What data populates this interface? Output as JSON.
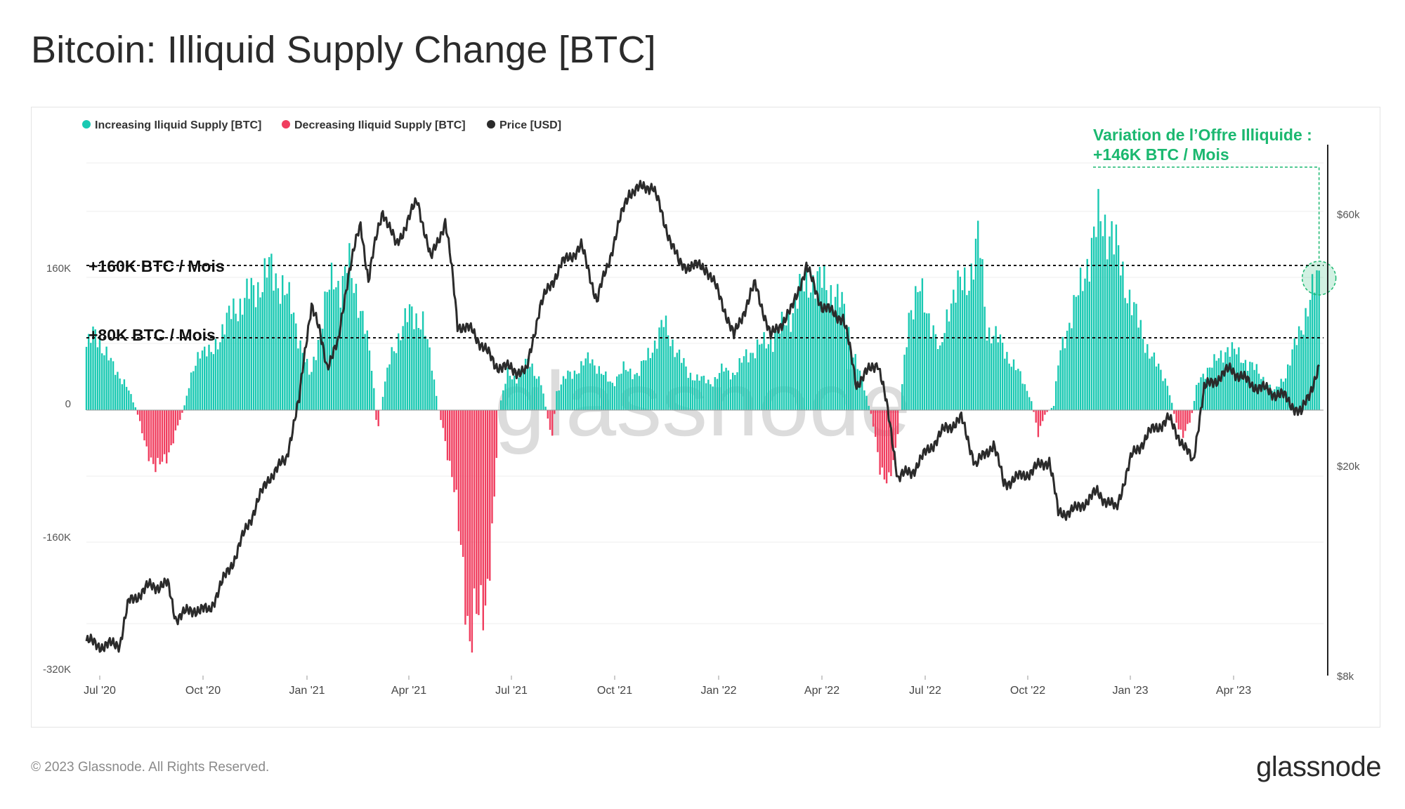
{
  "title": "Bitcoin: Illiquid Supply Change [BTC]",
  "footer": {
    "copyright": "© 2023 Glassnode. All Rights Reserved.",
    "logo": "glassnode"
  },
  "watermark": "glassnode",
  "colors": {
    "increase": "#19c9b2",
    "decrease": "#f03e5f",
    "price": "#2b2b2b",
    "annotation": "#1bb870"
  },
  "legend": [
    {
      "label": "Increasing Iliquid Supply [BTC]",
      "color": "#19c9b2"
    },
    {
      "label": "Decreasing Iliquid Supply [BTC]",
      "color": "#f03e5f"
    },
    {
      "label": "Price [USD]",
      "color": "#2b2b2b"
    }
  ],
  "annotations": {
    "line_160": "+160K BTC / Mois",
    "line_80": "+80K BTC / Mois",
    "current_line1": "Variation de l’Offre Illiquide :",
    "current_line2": "+146K BTC / Mois"
  },
  "chart_data": {
    "type": "bar",
    "title": "Bitcoin: Illiquid Supply Change [BTC]",
    "x_range": [
      "2020-06-20",
      "2023-07-05"
    ],
    "x_ticks": [
      "Jul '20",
      "Oct '20",
      "Jan '21",
      "Apr '21",
      "Jul '21",
      "Oct '21",
      "Jan '22",
      "Apr '22",
      "Jul '22",
      "Oct '22",
      "Jan '23",
      "Apr '23"
    ],
    "y_left": {
      "label": "Illiquid Supply Change [BTC]",
      "ticks": [
        "160K",
        "0",
        "-160K",
        "-320K"
      ],
      "tick_values": [
        160000,
        0,
        -160000,
        -320000
      ],
      "range": [
        -320000,
        320000
      ]
    },
    "y_right": {
      "label": "Price [USD]",
      "scale": "log",
      "ticks": [
        "$60k",
        "$20k",
        "$8k"
      ],
      "tick_values": [
        60000,
        20000,
        8000
      ],
      "range": [
        8000,
        90000
      ]
    },
    "reference_lines": [
      {
        "value": 160000,
        "label": "+160K BTC / Mois"
      },
      {
        "value": 80000,
        "label": "+80K BTC / Mois"
      }
    ],
    "highlight": {
      "date": "2023-07-01",
      "value": 146000,
      "label": "+146K BTC / Mois"
    },
    "series": [
      {
        "name": "Illiquid Supply Change [BTC]",
        "points": [
          [
            "2020-06-20",
            70000
          ],
          [
            "2020-06-28",
            85000
          ],
          [
            "2020-07-07",
            65000
          ],
          [
            "2020-07-15",
            45000
          ],
          [
            "2020-07-25",
            30000
          ],
          [
            "2020-08-04",
            0
          ],
          [
            "2020-08-12",
            -40000
          ],
          [
            "2020-08-22",
            -65000
          ],
          [
            "2020-08-30",
            -55000
          ],
          [
            "2020-09-08",
            -25000
          ],
          [
            "2020-09-15",
            0
          ],
          [
            "2020-09-22",
            35000
          ],
          [
            "2020-09-30",
            70000
          ],
          [
            "2020-10-10",
            60000
          ],
          [
            "2020-10-20",
            90000
          ],
          [
            "2020-10-30",
            110000
          ],
          [
            "2020-11-10",
            125000
          ],
          [
            "2020-11-20",
            135000
          ],
          [
            "2020-12-01",
            155000
          ],
          [
            "2020-12-12",
            140000
          ],
          [
            "2020-12-22",
            110000
          ],
          [
            "2021-01-01",
            60000
          ],
          [
            "2021-01-07",
            35000
          ],
          [
            "2021-01-14",
            80000
          ],
          [
            "2021-01-21",
            120000
          ],
          [
            "2021-01-28",
            150000
          ],
          [
            "2021-02-04",
            135000
          ],
          [
            "2021-02-10",
            160000
          ],
          [
            "2021-02-18",
            130000
          ],
          [
            "2021-02-25",
            90000
          ],
          [
            "2021-03-04",
            40000
          ],
          [
            "2021-03-08",
            -30000
          ],
          [
            "2021-03-12",
            10000
          ],
          [
            "2021-03-20",
            60000
          ],
          [
            "2021-03-30",
            90000
          ],
          [
            "2021-04-08",
            110000
          ],
          [
            "2021-04-18",
            95000
          ],
          [
            "2021-04-26",
            50000
          ],
          [
            "2021-05-02",
            0
          ],
          [
            "2021-05-06",
            -20000
          ],
          [
            "2021-05-15",
            -80000
          ],
          [
            "2021-05-24",
            -170000
          ],
          [
            "2021-05-30",
            -255000
          ],
          [
            "2021-06-06",
            -230000
          ],
          [
            "2021-06-14",
            -200000
          ],
          [
            "2021-06-20",
            -130000
          ],
          [
            "2021-06-25",
            0
          ],
          [
            "2021-07-03",
            40000
          ],
          [
            "2021-07-12",
            35000
          ],
          [
            "2021-07-22",
            55000
          ],
          [
            "2021-08-02",
            30000
          ],
          [
            "2021-08-08",
            -10000
          ],
          [
            "2021-08-12",
            -30000
          ],
          [
            "2021-08-16",
            20000
          ],
          [
            "2021-08-26",
            40000
          ],
          [
            "2021-09-06",
            45000
          ],
          [
            "2021-09-15",
            60000
          ],
          [
            "2021-09-25",
            40000
          ],
          [
            "2021-10-05",
            30000
          ],
          [
            "2021-10-15",
            45000
          ],
          [
            "2021-10-28",
            40000
          ],
          [
            "2021-11-10",
            70000
          ],
          [
            "2021-11-20",
            95000
          ],
          [
            "2021-11-30",
            70000
          ],
          [
            "2021-12-12",
            40000
          ],
          [
            "2021-12-22",
            35000
          ],
          [
            "2022-01-02",
            30000
          ],
          [
            "2022-01-12",
            45000
          ],
          [
            "2022-01-22",
            40000
          ],
          [
            "2022-02-02",
            60000
          ],
          [
            "2022-02-12",
            70000
          ],
          [
            "2022-02-22",
            75000
          ],
          [
            "2022-03-02",
            85000
          ],
          [
            "2022-03-12",
            100000
          ],
          [
            "2022-03-22",
            130000
          ],
          [
            "2022-04-01",
            145000
          ],
          [
            "2022-04-12",
            140000
          ],
          [
            "2022-04-22",
            130000
          ],
          [
            "2022-05-01",
            110000
          ],
          [
            "2022-05-10",
            60000
          ],
          [
            "2022-05-20",
            20000
          ],
          [
            "2022-05-26",
            -10000
          ],
          [
            "2022-06-02",
            -60000
          ],
          [
            "2022-06-10",
            -85000
          ],
          [
            "2022-06-16",
            -45000
          ],
          [
            "2022-06-20",
            0
          ],
          [
            "2022-06-28",
            110000
          ],
          [
            "2022-07-08",
            130000
          ],
          [
            "2022-07-18",
            100000
          ],
          [
            "2022-07-26",
            60000
          ],
          [
            "2022-08-03",
            120000
          ],
          [
            "2022-08-12",
            135000
          ],
          [
            "2022-08-22",
            150000
          ],
          [
            "2022-08-30",
            190000
          ],
          [
            "2022-09-06",
            90000
          ],
          [
            "2022-09-15",
            80000
          ],
          [
            "2022-09-25",
            60000
          ],
          [
            "2022-10-05",
            40000
          ],
          [
            "2022-10-15",
            15000
          ],
          [
            "2022-10-22",
            -25000
          ],
          [
            "2022-10-28",
            -5000
          ],
          [
            "2022-11-05",
            5000
          ],
          [
            "2022-11-10",
            60000
          ],
          [
            "2022-11-18",
            95000
          ],
          [
            "2022-11-28",
            130000
          ],
          [
            "2022-12-06",
            170000
          ],
          [
            "2022-12-16",
            210000
          ],
          [
            "2022-12-26",
            200000
          ],
          [
            "2023-01-06",
            150000
          ],
          [
            "2023-01-16",
            110000
          ],
          [
            "2023-01-26",
            75000
          ],
          [
            "2023-02-05",
            50000
          ],
          [
            "2023-02-15",
            30000
          ],
          [
            "2023-02-22",
            -10000
          ],
          [
            "2023-03-01",
            -30000
          ],
          [
            "2023-03-08",
            -10000
          ],
          [
            "2023-03-14",
            30000
          ],
          [
            "2023-03-22",
            45000
          ],
          [
            "2023-04-01",
            55000
          ],
          [
            "2023-04-10",
            70000
          ],
          [
            "2023-04-20",
            60000
          ],
          [
            "2023-05-01",
            50000
          ],
          [
            "2023-05-12",
            35000
          ],
          [
            "2023-05-22",
            20000
          ],
          [
            "2023-06-01",
            40000
          ],
          [
            "2023-06-12",
            80000
          ],
          [
            "2023-06-22",
            120000
          ],
          [
            "2023-07-01",
            146000
          ]
        ]
      },
      {
        "name": "Price [USD]",
        "points": [
          [
            "2020-06-20",
            9300
          ],
          [
            "2020-07-05",
            9100
          ],
          [
            "2020-07-20",
            9200
          ],
          [
            "2020-07-28",
            11000
          ],
          [
            "2020-08-15",
            11800
          ],
          [
            "2020-09-01",
            11900
          ],
          [
            "2020-09-08",
            10300
          ],
          [
            "2020-09-25",
            10700
          ],
          [
            "2020-10-08",
            10600
          ],
          [
            "2020-10-20",
            12000
          ],
          [
            "2020-11-01",
            13500
          ],
          [
            "2020-11-15",
            16000
          ],
          [
            "2020-12-01",
            19000
          ],
          [
            "2020-12-16",
            20500
          ],
          [
            "2020-12-28",
            26500
          ],
          [
            "2021-01-08",
            40500
          ],
          [
            "2021-01-22",
            31000
          ],
          [
            "2021-02-01",
            34000
          ],
          [
            "2021-02-10",
            46000
          ],
          [
            "2021-02-21",
            57000
          ],
          [
            "2021-02-28",
            45000
          ],
          [
            "2021-03-13",
            61000
          ],
          [
            "2021-03-25",
            52000
          ],
          [
            "2021-04-13",
            63500
          ],
          [
            "2021-04-25",
            49000
          ],
          [
            "2021-05-08",
            58000
          ],
          [
            "2021-05-19",
            37000
          ],
          [
            "2021-06-01",
            36000
          ],
          [
            "2021-06-22",
            31000
          ],
          [
            "2021-07-20",
            30000
          ],
          [
            "2021-08-01",
            40000
          ],
          [
            "2021-08-20",
            48000
          ],
          [
            "2021-09-07",
            52000
          ],
          [
            "2021-09-21",
            41000
          ],
          [
            "2021-10-01",
            48000
          ],
          [
            "2021-10-20",
            66000
          ],
          [
            "2021-11-10",
            68000
          ],
          [
            "2021-11-20",
            58000
          ],
          [
            "2021-12-04",
            48000
          ],
          [
            "2021-12-28",
            47500
          ],
          [
            "2022-01-10",
            41500
          ],
          [
            "2022-01-22",
            35000
          ],
          [
            "2022-02-10",
            44000
          ],
          [
            "2022-02-24",
            35000
          ],
          [
            "2022-03-15",
            39500
          ],
          [
            "2022-03-28",
            47500
          ],
          [
            "2022-04-11",
            40000
          ],
          [
            "2022-04-30",
            38000
          ],
          [
            "2022-05-12",
            28500
          ],
          [
            "2022-05-31",
            31500
          ],
          [
            "2022-06-13",
            22500
          ],
          [
            "2022-06-18",
            19000
          ],
          [
            "2022-07-01",
            19500
          ],
          [
            "2022-07-31",
            23500
          ],
          [
            "2022-08-14",
            24500
          ],
          [
            "2022-08-27",
            20000
          ],
          [
            "2022-09-12",
            22000
          ],
          [
            "2022-09-21",
            18500
          ],
          [
            "2022-10-10",
            19200
          ],
          [
            "2022-11-01",
            20500
          ],
          [
            "2022-11-09",
            16200
          ],
          [
            "2022-11-25",
            16500
          ],
          [
            "2022-12-14",
            17800
          ],
          [
            "2022-12-31",
            16500
          ],
          [
            "2023-01-14",
            20800
          ],
          [
            "2023-01-31",
            23200
          ],
          [
            "2023-02-16",
            24500
          ],
          [
            "2023-03-10",
            20200
          ],
          [
            "2023-03-20",
            28000
          ],
          [
            "2023-04-13",
            30500
          ],
          [
            "2023-05-01",
            28500
          ],
          [
            "2023-05-31",
            27000
          ],
          [
            "2023-06-15",
            25000
          ],
          [
            "2023-07-01",
            30500
          ]
        ]
      }
    ]
  }
}
